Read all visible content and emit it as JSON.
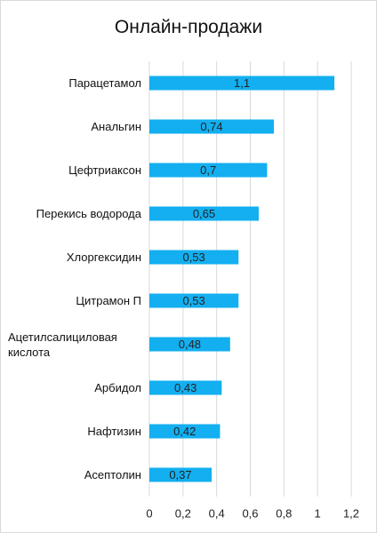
{
  "chart_data": {
    "type": "bar",
    "orientation": "horizontal",
    "title": "Онлайн-продажи",
    "categories": [
      "Парацетамол",
      "Анальгин",
      "Цефтриаксон",
      "Перекись водорода",
      "Хлоргексидин",
      "Цитрамон П",
      "Ацетилсалициловая кислота",
      "Арбидол",
      "Нафтизин",
      "Асептолин"
    ],
    "values": [
      1.1,
      0.74,
      0.7,
      0.65,
      0.53,
      0.53,
      0.48,
      0.43,
      0.42,
      0.37
    ],
    "value_labels": [
      "1,1",
      "0,74",
      "0,7",
      "0,65",
      "0,53",
      "0,53",
      "0,48",
      "0,43",
      "0,42",
      "0,37"
    ],
    "color": "#13aff0",
    "xlim": [
      0,
      1.2
    ],
    "xticks": [
      0,
      {
        "value": 0.2,
        "label": "0,2"
      },
      {
        "value": 0.4,
        "label": "0,4"
      },
      {
        "value": 0.6,
        "label": "0,6"
      },
      {
        "value": 0.8,
        "label": "0,8"
      },
      1,
      {
        "value": 1.2,
        "label": "1,2"
      }
    ],
    "grid": true
  }
}
